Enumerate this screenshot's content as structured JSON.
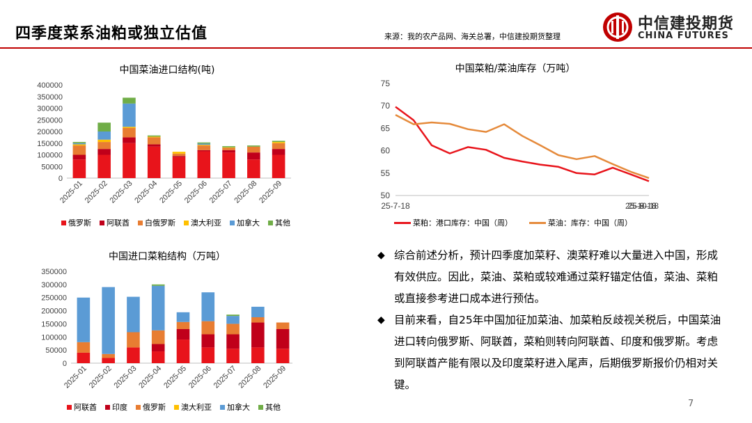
{
  "header": {
    "title": "四季度菜系油粕或独立估值",
    "source": "来源：我的农产品网、海关总署，中信建投期货整理",
    "logo_cn": "中信建投期货",
    "logo_en": "CHINA FUTURES"
  },
  "colors": {
    "red": "#e8141b",
    "darkred": "#c0001a",
    "orange": "#e87d32",
    "yellow": "#ffc000",
    "blue": "#5b9bd5",
    "green": "#70ad47",
    "tan": "#e58a3b",
    "brand": "#c00000"
  },
  "chart_data": [
    {
      "id": "rapeseed-oil-imports",
      "type": "bar",
      "stacked": true,
      "title": "中国菜油进口结构(吨)",
      "categories": [
        "2025-01",
        "2025-02",
        "2025-03",
        "2025-04",
        "2025-05",
        "2025-06",
        "2025-07",
        "2025-08",
        "2025-09"
      ],
      "ylim": [
        0,
        400000
      ],
      "yticks": [
        "0",
        "50000",
        "100000",
        "150000",
        "200000",
        "250000",
        "300000",
        "350000",
        "400000"
      ],
      "series": [
        {
          "name": "俄罗斯",
          "color": "#e8141b",
          "values": [
            80000,
            100000,
            150000,
            135000,
            90000,
            115000,
            110000,
            80000,
            100000
          ]
        },
        {
          "name": "阿联酋",
          "color": "#c0001a",
          "values": [
            20000,
            25000,
            25000,
            10000,
            5000,
            5000,
            10000,
            30000,
            25000
          ]
        },
        {
          "name": "白俄罗斯",
          "color": "#e87d32",
          "values": [
            40000,
            30000,
            40000,
            30000,
            10000,
            20000,
            10000,
            25000,
            25000
          ]
        },
        {
          "name": "澳大利亚",
          "color": "#ffc000",
          "values": [
            5000,
            10000,
            5000,
            3000,
            8000,
            3000,
            2000,
            0,
            5000
          ]
        },
        {
          "name": "加拿大",
          "color": "#5b9bd5",
          "values": [
            5000,
            35000,
            100000,
            0,
            0,
            5000,
            0,
            0,
            0
          ]
        },
        {
          "name": "其他",
          "color": "#70ad47",
          "values": [
            5000,
            38000,
            25000,
            5000,
            0,
            5000,
            5000,
            5000,
            5000
          ]
        }
      ]
    },
    {
      "id": "rapeseed-meal-imports",
      "type": "bar",
      "stacked": true,
      "title": "中国进口菜粕结构（万吨）",
      "categories": [
        "2025-01",
        "2025-02",
        "2025-03",
        "2025-04",
        "2025-05",
        "2025-06",
        "2025-07",
        "2025-08",
        "2025-09"
      ],
      "ylim": [
        0,
        350000
      ],
      "yticks": [
        "0",
        "50000",
        "100000",
        "150000",
        "200000",
        "250000",
        "300000",
        "350000"
      ],
      "series": [
        {
          "name": "阿联酋",
          "color": "#e8141b",
          "values": [
            40000,
            20000,
            60000,
            45000,
            90000,
            60000,
            55000,
            60000,
            55000
          ]
        },
        {
          "name": "印度",
          "color": "#c0001a",
          "values": [
            0,
            0,
            0,
            28000,
            40000,
            50000,
            55000,
            95000,
            75000
          ]
        },
        {
          "name": "俄罗斯",
          "color": "#e87d32",
          "values": [
            40000,
            15000,
            58000,
            52000,
            27000,
            50000,
            40000,
            20000,
            25000
          ]
        },
        {
          "name": "澳大利亚",
          "color": "#ffc000",
          "values": [
            0,
            0,
            0,
            0,
            0,
            0,
            0,
            0,
            0
          ]
        },
        {
          "name": "加拿大",
          "color": "#5b9bd5",
          "values": [
            170000,
            255000,
            135000,
            170000,
            37000,
            110000,
            30000,
            40000,
            0
          ]
        },
        {
          "name": "其他",
          "color": "#70ad47",
          "values": [
            0,
            0,
            0,
            5000,
            0,
            0,
            5000,
            0,
            0
          ]
        }
      ]
    },
    {
      "id": "inventory",
      "type": "line",
      "title": "中国菜粕/菜油库存（万吨）",
      "x": [
        "25-7-18",
        "25-7-25",
        "25-8-1",
        "25-8-8",
        "25-8-15",
        "25-8-22",
        "25-8-29",
        "25-9-5",
        "25-9-12",
        "25-9-19",
        "25-9-26",
        "25-10-3",
        "25-10-10",
        "25-10-17",
        "25-10-24"
      ],
      "xticks": [
        "25-7-18",
        "25-8-18",
        "25-9-18",
        "25-10-18"
      ],
      "ylim": [
        50,
        75
      ],
      "yticks": [
        "50",
        "55",
        "60",
        "65",
        "70",
        "75"
      ],
      "series": [
        {
          "name": "菜粕：港口库存：中国（周）",
          "color": "#e8141b",
          "values": [
            69.8,
            66.8,
            61.2,
            59.4,
            60.8,
            60.2,
            58.4,
            57.6,
            56.9,
            56.4,
            55.0,
            54.7,
            56.2,
            54.7,
            53.2
          ]
        },
        {
          "name": "菜油：库存：中国（周）",
          "color": "#e58a3b",
          "values": [
            68.0,
            65.9,
            66.3,
            66.0,
            64.8,
            64.2,
            65.9,
            63.3,
            61.2,
            59.0,
            58.1,
            58.8,
            57.0,
            55.3,
            53.9
          ]
        }
      ]
    }
  ],
  "bullets": [
    "综合前述分析，预计四季度加菜籽、澳菜籽难以大量进入中国，形成有效供应。因此，菜油、菜粕或较难通过菜籽锚定估值，菜油、菜粕或直接参考进口成本进行预估。",
    "目前来看，自25年中国加征加菜油、加菜粕反歧视关税后，中国菜油进口转向俄罗斯、阿联酋，菜粕则转向阿联酋、印度和俄罗斯。考虑到阿联酋产能有限以及印度菜籽进入尾声，后期俄罗斯报价仍相对关键。"
  ],
  "bullet_marker": "◆",
  "page_number": "7"
}
